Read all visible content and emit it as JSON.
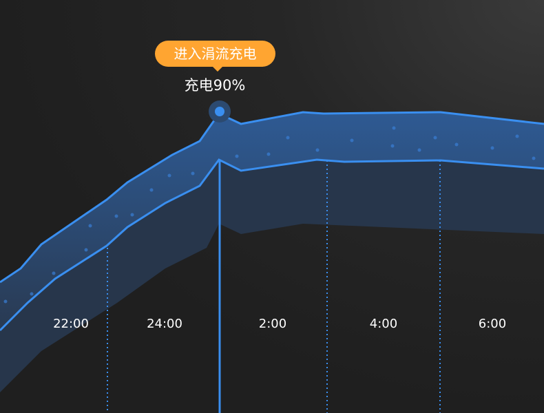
{
  "tooltip": {
    "label": "进入涓流充电",
    "value": "充电90%"
  },
  "chart_data": {
    "type": "area",
    "title": "",
    "x_tick_labels": [
      "22:00",
      "24:00",
      "2:00",
      "4:00",
      "6:00"
    ],
    "annotation": {
      "label": "进入涓流充电",
      "text": "充电90%"
    },
    "colors": {
      "line": "#3a8ff0",
      "band": "#2b4260",
      "tooltip": "#ffa531"
    }
  }
}
